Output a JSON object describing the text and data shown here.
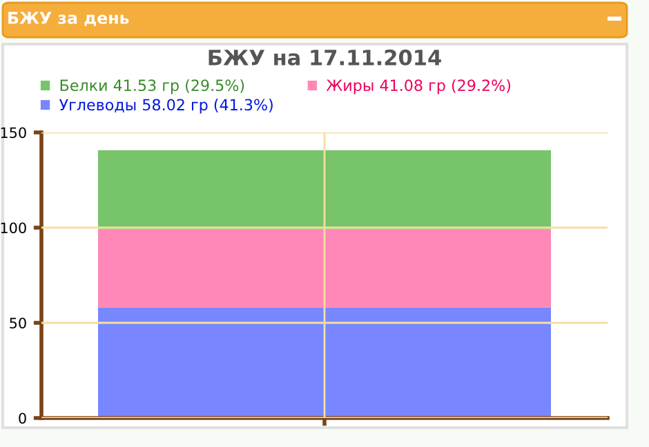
{
  "chart_data": {
    "type": "bar",
    "title": "БЖУ на 17.11.2014",
    "annotations": [
      "БЖУ за день"
    ],
    "categories": [
      null
    ],
    "stacked": true,
    "series": [
      {
        "name": "Углеводы 58.02 гр (41.3%)",
        "color": "#7887ff",
        "values": [
          58.02
        ]
      },
      {
        "name": "Жиры 41.08 гр (29.2%)",
        "color": "#ff88b8",
        "values": [
          41.08
        ]
      },
      {
        "name": "Белки 41.53 гр (29.5%)",
        "color": "#78c46a",
        "values": [
          41.53
        ]
      }
    ],
    "ylim": [
      0,
      150
    ],
    "yticks": [
      0,
      50,
      100,
      150
    ],
    "grid": true,
    "legend": "top"
  }
}
